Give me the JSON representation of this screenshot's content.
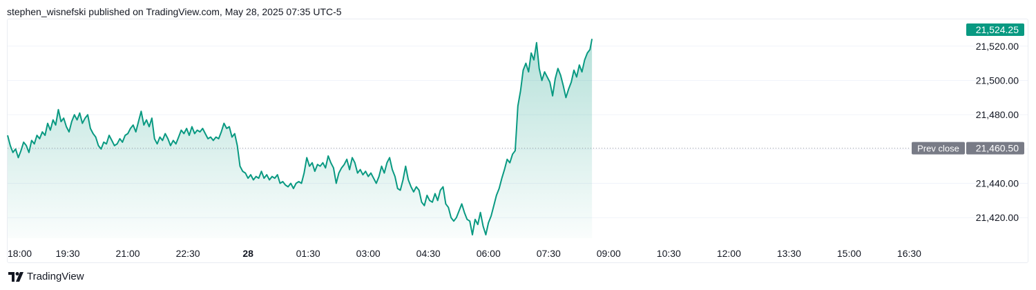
{
  "header": {
    "text": "stephen_wisnefski published on TradingView.com, May 28, 2025 07:35 UTC-5"
  },
  "footer": {
    "brand": "TradingView"
  },
  "colors": {
    "line": "#089981",
    "fill": "#089981",
    "prev_close_bg": "#787b86",
    "last_price_bg": "#089981",
    "grid": "#f0f3fa"
  },
  "chart_data": {
    "type": "area",
    "x_axis": {
      "range": [
        "18:00",
        "17:30"
      ],
      "tick_labels": [
        {
          "label": "18:00",
          "t": 0,
          "bold": false
        },
        {
          "label": "19:30",
          "t": 90,
          "bold": false
        },
        {
          "label": "21:00",
          "t": 180,
          "bold": false
        },
        {
          "label": "22:30",
          "t": 270,
          "bold": false
        },
        {
          "label": "28",
          "t": 360,
          "bold": true
        },
        {
          "label": "01:30",
          "t": 450,
          "bold": false
        },
        {
          "label": "03:00",
          "t": 540,
          "bold": false
        },
        {
          "label": "04:30",
          "t": 630,
          "bold": false
        },
        {
          "label": "06:00",
          "t": 720,
          "bold": false
        },
        {
          "label": "07:30",
          "t": 810,
          "bold": false
        },
        {
          "label": "09:00",
          "t": 900,
          "bold": false
        },
        {
          "label": "10:30",
          "t": 990,
          "bold": false
        },
        {
          "label": "12:00",
          "t": 1080,
          "bold": false
        },
        {
          "label": "13:30",
          "t": 1170,
          "bold": false
        },
        {
          "label": "15:00",
          "t": 1260,
          "bold": false
        },
        {
          "label": "16:30",
          "t": 1350,
          "bold": false
        }
      ]
    },
    "y_axis": {
      "range": [
        21408,
        21532
      ],
      "tick_labels": [
        "21,420.00",
        "21,440.00",
        "21,460.00",
        "21,480.00",
        "21,500.00",
        "21,520.00"
      ],
      "ticks": [
        21420,
        21440,
        21460,
        21480,
        21500,
        21520
      ]
    },
    "prev_close": {
      "label": "Prev close",
      "value": 21460.5,
      "value_label": "21,460.50"
    },
    "last_price": {
      "value": 21524.25,
      "value_label": "21,524.25"
    },
    "series": [
      {
        "points": [
          [
            0,
            21468
          ],
          [
            4,
            21462
          ],
          [
            8,
            21458
          ],
          [
            12,
            21460
          ],
          [
            16,
            21455
          ],
          [
            20,
            21459
          ],
          [
            24,
            21464
          ],
          [
            28,
            21462
          ],
          [
            32,
            21458
          ],
          [
            36,
            21465
          ],
          [
            40,
            21463
          ],
          [
            44,
            21468
          ],
          [
            48,
            21466
          ],
          [
            52,
            21470
          ],
          [
            56,
            21468
          ],
          [
            60,
            21475
          ],
          [
            64,
            21471
          ],
          [
            68,
            21477
          ],
          [
            72,
            21474
          ],
          [
            76,
            21483
          ],
          [
            80,
            21476
          ],
          [
            84,
            21478
          ],
          [
            88,
            21473
          ],
          [
            92,
            21470
          ],
          [
            96,
            21476
          ],
          [
            100,
            21480
          ],
          [
            104,
            21477
          ],
          [
            108,
            21481
          ],
          [
            112,
            21475
          ],
          [
            116,
            21478
          ],
          [
            120,
            21480
          ],
          [
            124,
            21472
          ],
          [
            128,
            21469
          ],
          [
            132,
            21467
          ],
          [
            136,
            21462
          ],
          [
            140,
            21460
          ],
          [
            144,
            21464
          ],
          [
            148,
            21463
          ],
          [
            152,
            21468
          ],
          [
            156,
            21465
          ],
          [
            160,
            21462
          ],
          [
            164,
            21463
          ],
          [
            168,
            21466
          ],
          [
            172,
            21464
          ],
          [
            176,
            21468
          ],
          [
            180,
            21469
          ],
          [
            184,
            21472
          ],
          [
            188,
            21474
          ],
          [
            192,
            21470
          ],
          [
            196,
            21476
          ],
          [
            200,
            21482
          ],
          [
            204,
            21474
          ],
          [
            208,
            21477
          ],
          [
            212,
            21473
          ],
          [
            216,
            21478
          ],
          [
            220,
            21466
          ],
          [
            224,
            21463
          ],
          [
            228,
            21467
          ],
          [
            232,
            21465
          ],
          [
            236,
            21469
          ],
          [
            240,
            21466
          ],
          [
            244,
            21462
          ],
          [
            248,
            21465
          ],
          [
            252,
            21463
          ],
          [
            256,
            21467
          ],
          [
            260,
            21471
          ],
          [
            264,
            21469
          ],
          [
            268,
            21472
          ],
          [
            272,
            21468
          ],
          [
            276,
            21473
          ],
          [
            280,
            21469
          ],
          [
            284,
            21471
          ],
          [
            288,
            21470
          ],
          [
            292,
            21472
          ],
          [
            296,
            21469
          ],
          [
            300,
            21466
          ],
          [
            304,
            21467
          ],
          [
            308,
            21465
          ],
          [
            312,
            21467
          ],
          [
            316,
            21466
          ],
          [
            320,
            21470
          ],
          [
            324,
            21475
          ],
          [
            328,
            21472
          ],
          [
            332,
            21473
          ],
          [
            336,
            21467
          ],
          [
            340,
            21469
          ],
          [
            344,
            21462
          ],
          [
            348,
            21450
          ],
          [
            352,
            21447
          ],
          [
            356,
            21446
          ],
          [
            360,
            21443
          ],
          [
            364,
            21445
          ],
          [
            368,
            21442
          ],
          [
            372,
            21444
          ],
          [
            376,
            21443
          ],
          [
            380,
            21447
          ],
          [
            384,
            21443
          ],
          [
            388,
            21445
          ],
          [
            392,
            21442
          ],
          [
            396,
            21444
          ],
          [
            400,
            21443
          ],
          [
            404,
            21445
          ],
          [
            408,
            21440
          ],
          [
            412,
            21441
          ],
          [
            416,
            21439
          ],
          [
            420,
            21438
          ],
          [
            424,
            21440
          ],
          [
            428,
            21437
          ],
          [
            432,
            21440
          ],
          [
            436,
            21441
          ],
          [
            440,
            21440
          ],
          [
            444,
            21446
          ],
          [
            448,
            21455
          ],
          [
            452,
            21450
          ],
          [
            456,
            21452
          ],
          [
            460,
            21447
          ],
          [
            464,
            21451
          ],
          [
            468,
            21450
          ],
          [
            472,
            21452
          ],
          [
            476,
            21449
          ],
          [
            480,
            21456
          ],
          [
            484,
            21452
          ],
          [
            488,
            21449
          ],
          [
            492,
            21440
          ],
          [
            496,
            21446
          ],
          [
            500,
            21449
          ],
          [
            504,
            21451
          ],
          [
            508,
            21454
          ],
          [
            512,
            21448
          ],
          [
            516,
            21455
          ],
          [
            520,
            21452
          ],
          [
            524,
            21446
          ],
          [
            528,
            21448
          ],
          [
            532,
            21445
          ],
          [
            536,
            21447
          ],
          [
            540,
            21444
          ],
          [
            544,
            21446
          ],
          [
            548,
            21443
          ],
          [
            552,
            21440
          ],
          [
            556,
            21444
          ],
          [
            560,
            21450
          ],
          [
            564,
            21446
          ],
          [
            568,
            21452
          ],
          [
            572,
            21455
          ],
          [
            576,
            21448
          ],
          [
            580,
            21444
          ],
          [
            584,
            21437
          ],
          [
            588,
            21436
          ],
          [
            592,
            21442
          ],
          [
            596,
            21450
          ],
          [
            600,
            21442
          ],
          [
            604,
            21438
          ],
          [
            608,
            21435
          ],
          [
            612,
            21438
          ],
          [
            616,
            21436
          ],
          [
            620,
            21429
          ],
          [
            624,
            21427
          ],
          [
            628,
            21433
          ],
          [
            632,
            21430
          ],
          [
            636,
            21429
          ],
          [
            640,
            21434
          ],
          [
            644,
            21430
          ],
          [
            648,
            21436
          ],
          [
            652,
            21438
          ],
          [
            656,
            21428
          ],
          [
            660,
            21426
          ],
          [
            664,
            21420
          ],
          [
            668,
            21418
          ],
          [
            672,
            21420
          ],
          [
            676,
            21424
          ],
          [
            680,
            21428
          ],
          [
            684,
            21423
          ],
          [
            688,
            21419
          ],
          [
            692,
            21418
          ],
          [
            696,
            21410
          ],
          [
            700,
            21419
          ],
          [
            704,
            21416
          ],
          [
            708,
            21423
          ],
          [
            712,
            21415
          ],
          [
            716,
            21410
          ],
          [
            720,
            21417
          ],
          [
            724,
            21421
          ],
          [
            728,
            21427
          ],
          [
            732,
            21433
          ],
          [
            736,
            21437
          ],
          [
            740,
            21443
          ],
          [
            744,
            21448
          ],
          [
            748,
            21454
          ],
          [
            752,
            21452
          ],
          [
            756,
            21457
          ],
          [
            760,
            21459
          ],
          [
            762,
            21472
          ],
          [
            764,
            21485
          ],
          [
            768,
            21494
          ],
          [
            772,
            21506
          ],
          [
            776,
            21510
          ],
          [
            780,
            21505
          ],
          [
            784,
            21516
          ],
          [
            788,
            21512
          ],
          [
            792,
            21522
          ],
          [
            796,
            21507
          ],
          [
            800,
            21500
          ],
          [
            804,
            21505
          ],
          [
            808,
            21502
          ],
          [
            812,
            21499
          ],
          [
            816,
            21491
          ],
          [
            820,
            21501
          ],
          [
            824,
            21507
          ],
          [
            828,
            21503
          ],
          [
            832,
            21497
          ],
          [
            836,
            21490
          ],
          [
            840,
            21495
          ],
          [
            844,
            21499
          ],
          [
            848,
            21506
          ],
          [
            852,
            21502
          ],
          [
            856,
            21509
          ],
          [
            860,
            21505
          ],
          [
            864,
            21512
          ],
          [
            868,
            21516
          ],
          [
            872,
            21518
          ],
          [
            875,
            21524.25
          ]
        ]
      }
    ]
  }
}
